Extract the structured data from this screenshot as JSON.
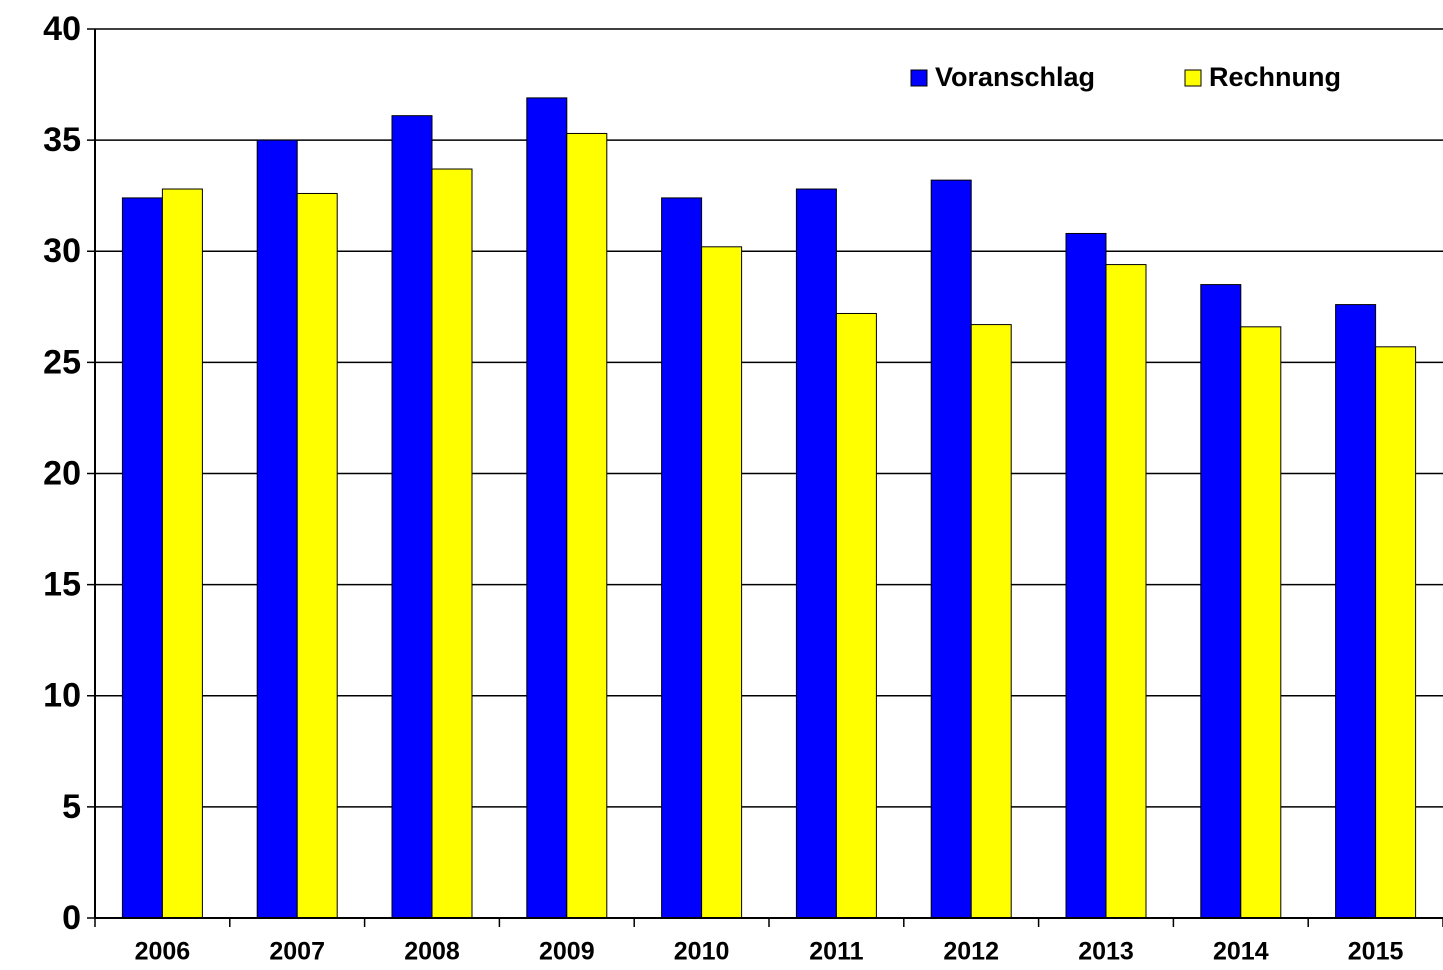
{
  "chart_data": {
    "type": "bar",
    "categories": [
      "2006",
      "2007",
      "2008",
      "2009",
      "2010",
      "2011",
      "2012",
      "2013",
      "2014",
      "2015"
    ],
    "series": [
      {
        "name": "Voranschlag",
        "color": "#0000ff",
        "values": [
          32.4,
          35.0,
          36.1,
          36.9,
          32.4,
          32.8,
          33.2,
          30.8,
          28.5,
          27.6
        ]
      },
      {
        "name": "Rechnung",
        "color": "#ffff00",
        "values": [
          32.8,
          32.6,
          33.7,
          35.3,
          30.2,
          27.2,
          26.7,
          29.4,
          26.6,
          25.7
        ]
      }
    ],
    "ylim": [
      0,
      40
    ],
    "yticks": [
      0,
      5,
      10,
      15,
      20,
      25,
      30,
      35,
      40
    ],
    "grid": true,
    "legend": "upper right"
  }
}
